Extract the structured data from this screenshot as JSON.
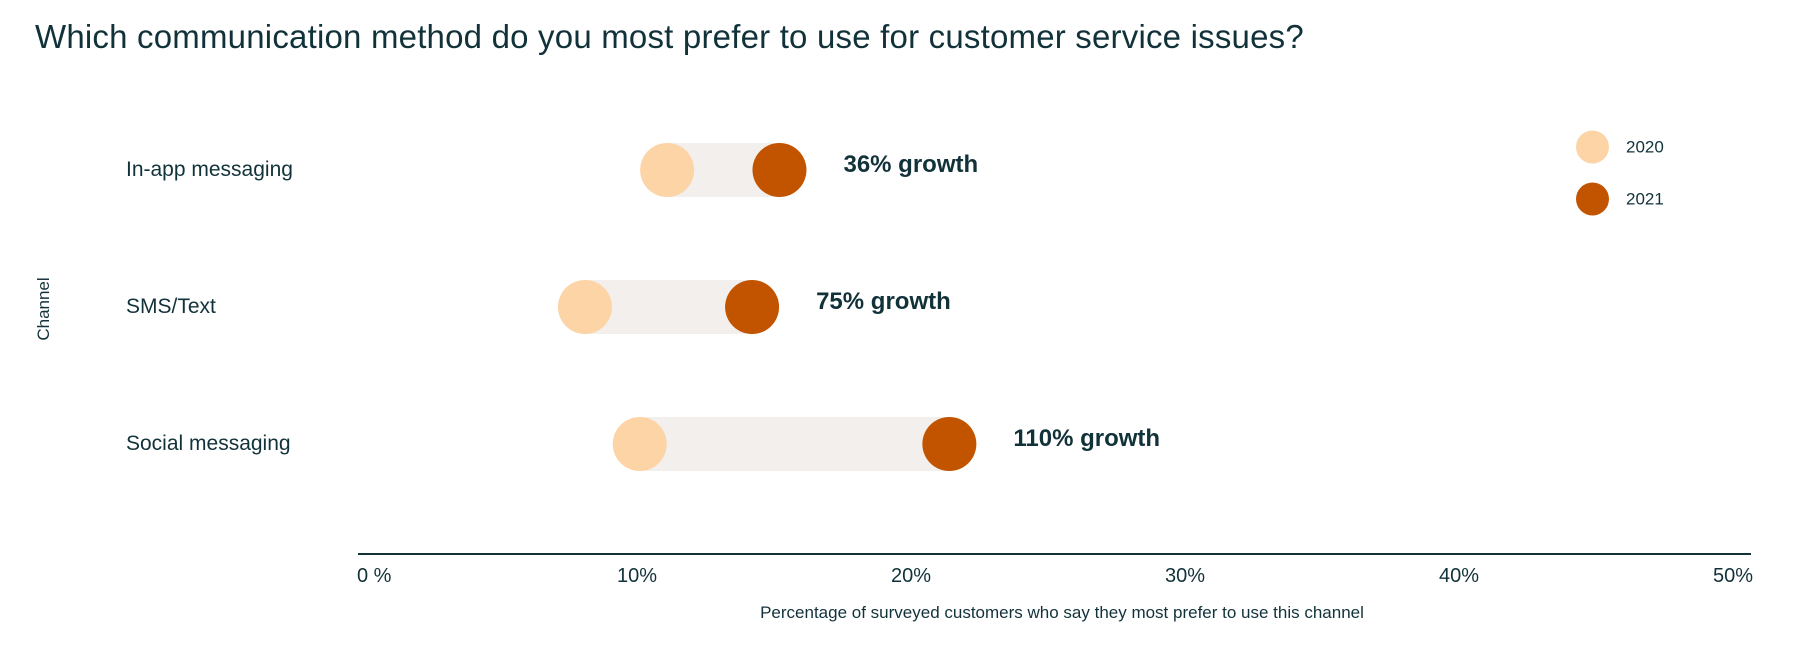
{
  "chart_data": {
    "type": "dumbbell",
    "title": "Which communication method do you most prefer to use for customer service issues?",
    "xlabel": "Percentage of surveyed customers who say they most prefer to use this channel",
    "ylabel": "Channel",
    "xlim": [
      0,
      50
    ],
    "x_ticks": [
      "0 %",
      "10%",
      "20%",
      "30%",
      "40%",
      "50%"
    ],
    "x_tick_values": [
      0,
      10,
      20,
      30,
      40,
      50
    ],
    "grid": false,
    "legend_position": "top-right",
    "categories": [
      "In-app messaging",
      "SMS/Text",
      "Social messaging"
    ],
    "series": [
      {
        "name": "2020",
        "color": "#fdd4a6",
        "values": [
          11.1,
          8.1,
          10.1
        ]
      },
      {
        "name": "2021",
        "color": "#c25400",
        "values": [
          15.2,
          14.2,
          21.4
        ]
      }
    ],
    "annotations": [
      "36% growth",
      "75% growth",
      "110% growth"
    ],
    "colors": {
      "connector": "#f3efec",
      "axis": "#12323a",
      "text": "#12323a"
    }
  }
}
